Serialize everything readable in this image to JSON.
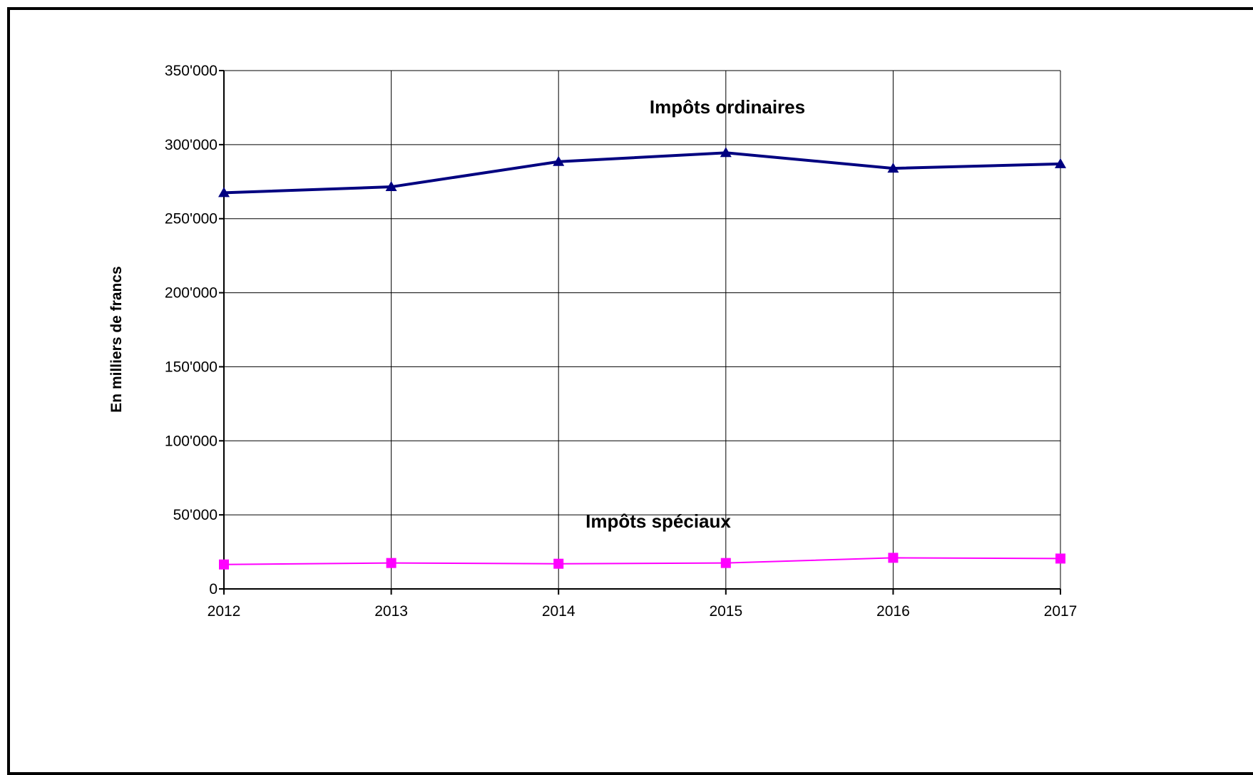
{
  "chart_data": {
    "type": "line",
    "title": "",
    "xlabel": "",
    "ylabel": "En  milliers  de  francs",
    "x": [
      "2012",
      "2013",
      "2014",
      "2015",
      "2016",
      "2017"
    ],
    "ylim": [
      0,
      350000
    ],
    "ytick_labels": [
      "0",
      "50'000",
      "100'000",
      "150'000",
      "200'000",
      "250'000",
      "300'000",
      "350'000"
    ],
    "grid": true,
    "legend": "none",
    "series": [
      {
        "name": "Impôts ordinaires",
        "color": "#000080",
        "marker": "triangle",
        "values": [
          267500,
          271500,
          288500,
          294500,
          284000,
          287000
        ]
      },
      {
        "name": "Impôts spéciaux",
        "color": "#ff00ff",
        "marker": "square",
        "values": [
          16500,
          17500,
          17000,
          17500,
          21000,
          20500
        ]
      }
    ]
  }
}
